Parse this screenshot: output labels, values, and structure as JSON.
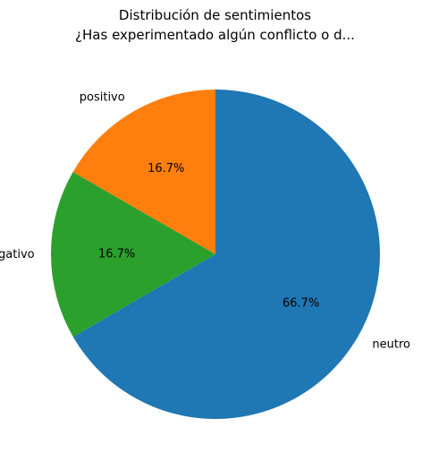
{
  "chart_data": {
    "type": "pie",
    "title": "Distribución de sentimientos\n¿Has experimentado algún conflicto o d...",
    "title_lines": [
      "Distribución de sentimientos",
      "¿Has experimentado algún conflicto o d..."
    ],
    "start_angle_deg": 90,
    "direction": "counterclockwise",
    "slices": [
      {
        "label": "positivo",
        "value": 16.7,
        "pct_label": "16.7%",
        "color": "#ff7f0e"
      },
      {
        "label": "negativo",
        "value": 16.7,
        "pct_label": "16.7%",
        "color": "#2ca02c"
      },
      {
        "label": "neutro",
        "value": 66.7,
        "pct_label": "66.7%",
        "color": "#1f77b4"
      }
    ]
  }
}
